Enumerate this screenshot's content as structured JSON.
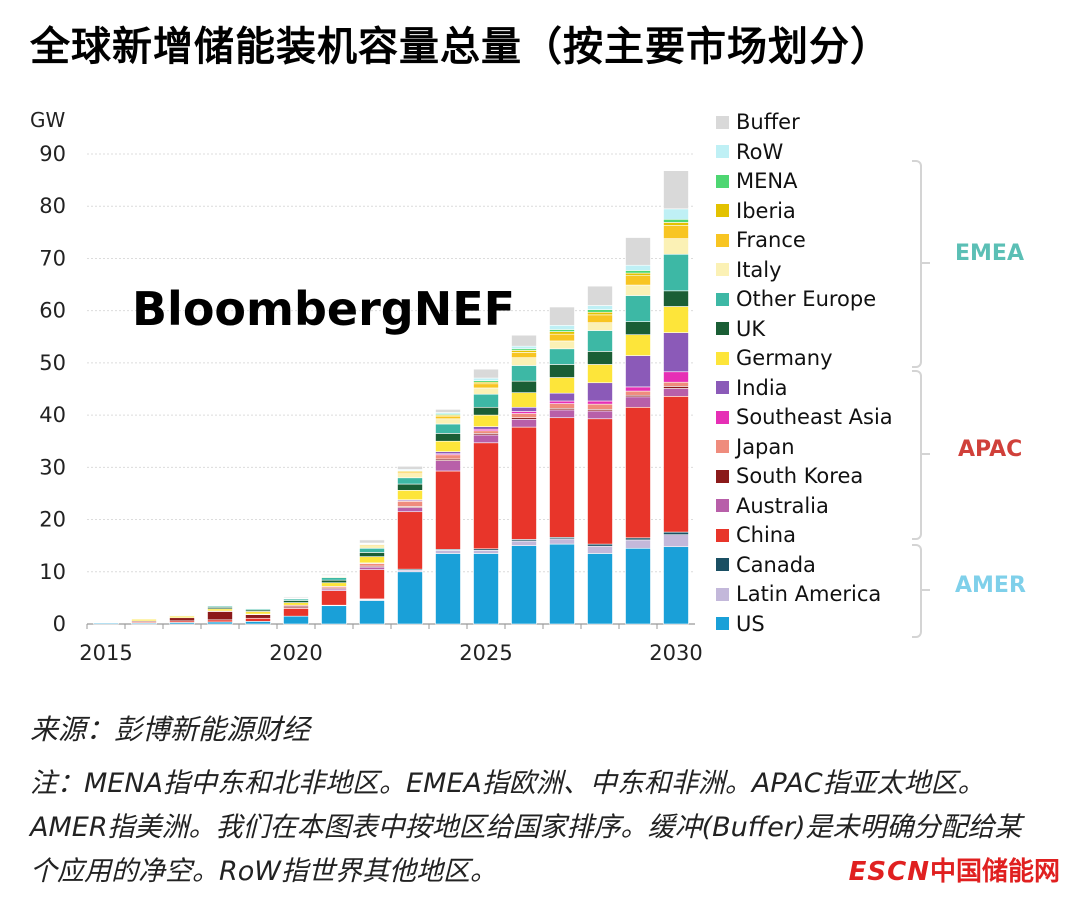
{
  "title": "全球新增储能装机容量总量（按主要市场划分）",
  "watermark": "BloombergNEF",
  "unit": "GW",
  "source": "来源：彭博新能源财经",
  "note": "注：MENA指中东和北非地区。EMEA指欧洲、中东和非洲。APAC指亚太地区。AMER指美洲。我们在本图表中按地区给国家排序。缓冲(Buffer)是未明确分配给某个应用的净空。RoW指世界其他地区。",
  "logo": {
    "prefix": "ESCN",
    "name": "中国储能网"
  },
  "regions": {
    "emea": "EMEA",
    "apac": "APAC",
    "amer": "AMER"
  },
  "colors": {
    "emea": "#5bbfb5",
    "apac": "#d0403a",
    "amer": "#7fd0ea"
  },
  "chart_data": {
    "type": "bar",
    "stacked": true,
    "ylabel": "GW",
    "ylim": [
      0,
      90
    ],
    "yticks": [
      0,
      10,
      20,
      30,
      40,
      50,
      60,
      70,
      80,
      90
    ],
    "xticks": [
      "2015",
      "2020",
      "2025",
      "2030"
    ],
    "grid": true,
    "legend_position": "right",
    "categories": [
      "2015",
      "2016",
      "2017",
      "2018",
      "2019",
      "2020",
      "2021",
      "2022",
      "2023",
      "2024",
      "2025",
      "2026",
      "2027",
      "2028",
      "2029",
      "2030"
    ],
    "series": [
      {
        "name": "US",
        "color": "#1aa0d8",
        "values": [
          0.2,
          0.2,
          0.3,
          0.4,
          0.5,
          1.5,
          3.5,
          4.5,
          10.0,
          13.5,
          13.5,
          15.0,
          15.3,
          13.5,
          14.5,
          14.8
        ]
      },
      {
        "name": "Latin America",
        "color": "#c3b8da",
        "values": [
          0,
          0,
          0,
          0,
          0,
          0,
          0.1,
          0.2,
          0.3,
          0.6,
          0.6,
          0.9,
          1.0,
          1.4,
          1.6,
          2.3
        ]
      },
      {
        "name": "Canada",
        "color": "#1a4f63",
        "values": [
          0,
          0,
          0,
          0,
          0,
          0,
          0,
          0.1,
          0.2,
          0.2,
          0.3,
          0.3,
          0.3,
          0.4,
          0.4,
          0.5
        ]
      },
      {
        "name": "China",
        "color": "#e8352a",
        "values": [
          0.1,
          0.2,
          0.3,
          0.4,
          0.6,
          1.5,
          2.8,
          5.6,
          11.0,
          15.0,
          20.3,
          21.5,
          22.9,
          24.0,
          25.0,
          26.0
        ]
      },
      {
        "name": "Australia",
        "color": "#b85fa9",
        "values": [
          0,
          0,
          0,
          0,
          0,
          0.1,
          0.3,
          0.5,
          0.8,
          2.0,
          1.5,
          1.5,
          1.5,
          1.5,
          2.0,
          1.5
        ]
      },
      {
        "name": "South Korea",
        "color": "#8b1a1a",
        "values": [
          0.1,
          0.2,
          0.6,
          1.6,
          0.7,
          0.3,
          0.2,
          0.2,
          0.2,
          0.3,
          0.3,
          0.3,
          0.3,
          0.3,
          0.3,
          0.4
        ]
      },
      {
        "name": "Japan",
        "color": "#ef8c7d",
        "values": [
          0,
          0,
          0,
          0.1,
          0.1,
          0.2,
          0.3,
          0.5,
          1.0,
          0.8,
          0.5,
          0.8,
          0.9,
          1.0,
          0.8,
          0.8
        ]
      },
      {
        "name": "Southeast Asia",
        "color": "#e62fb5",
        "values": [
          0,
          0,
          0,
          0,
          0,
          0,
          0,
          0,
          0.1,
          0.2,
          0.3,
          0.4,
          0.5,
          0.6,
          0.8,
          2.0
        ]
      },
      {
        "name": "India",
        "color": "#8b5ab8",
        "values": [
          0,
          0,
          0,
          0,
          0,
          0,
          0,
          0.1,
          0.2,
          0.4,
          0.5,
          0.8,
          1.5,
          3.5,
          6.0,
          7.5
        ]
      },
      {
        "name": "Germany",
        "color": "#fde53a",
        "values": [
          0.1,
          0.3,
          0.3,
          0.4,
          0.5,
          0.5,
          0.7,
          1.2,
          1.8,
          2.0,
          2.2,
          2.8,
          3.0,
          3.5,
          4.0,
          5.0
        ]
      },
      {
        "name": "UK",
        "color": "#1a5e35",
        "values": [
          0,
          0,
          0.1,
          0.3,
          0.3,
          0.4,
          0.5,
          0.8,
          1.2,
          1.5,
          1.5,
          2.2,
          2.5,
          2.5,
          2.5,
          3.0
        ]
      },
      {
        "name": "Other Europe",
        "color": "#3db8a5",
        "values": [
          0,
          0,
          0.1,
          0.2,
          0.2,
          0.3,
          0.5,
          0.8,
          1.2,
          1.8,
          2.5,
          3.0,
          3.0,
          4.0,
          5.0,
          7.0
        ]
      },
      {
        "name": "Italy",
        "color": "#fbf1b5",
        "values": [
          0,
          0,
          0,
          0,
          0,
          0.1,
          0.2,
          0.5,
          0.8,
          1.0,
          1.2,
          1.5,
          1.5,
          1.5,
          2.0,
          3.0
        ]
      },
      {
        "name": "France",
        "color": "#f8c522",
        "values": [
          0,
          0,
          0,
          0,
          0,
          0.1,
          0.1,
          0.2,
          0.3,
          0.5,
          0.8,
          1.0,
          1.3,
          1.5,
          1.8,
          2.5
        ]
      },
      {
        "name": "Iberia",
        "color": "#e3c200",
        "values": [
          0,
          0,
          0,
          0,
          0,
          0,
          0,
          0.1,
          0.2,
          0.2,
          0.3,
          0.4,
          0.5,
          0.5,
          0.5,
          0.6
        ]
      },
      {
        "name": "MENA",
        "color": "#4ed672",
        "values": [
          0,
          0,
          0,
          0,
          0,
          0,
          0,
          0.1,
          0.1,
          0.2,
          0.3,
          0.3,
          0.4,
          0.5,
          0.5,
          0.6
        ]
      },
      {
        "name": "RoW",
        "color": "#bff0f5",
        "values": [
          0,
          0,
          0,
          0,
          0,
          0,
          0.1,
          0.1,
          0.2,
          0.3,
          0.5,
          0.5,
          0.8,
          0.8,
          1.0,
          2.0
        ]
      },
      {
        "name": "Buffer",
        "color": "#d9d9d9",
        "values": [
          0,
          0,
          0,
          0,
          0,
          0.2,
          0.2,
          0.6,
          0.6,
          0.6,
          1.7,
          2.1,
          3.5,
          3.7,
          5.3,
          7.3
        ]
      }
    ]
  }
}
